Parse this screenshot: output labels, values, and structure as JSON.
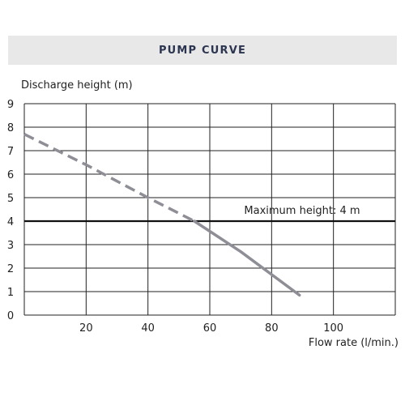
{
  "chart_data": {
    "type": "line",
    "title": "PUMP CURVE",
    "ylabel": "Discharge height (m)",
    "xlabel": "Flow rate (l/min.)",
    "xlim": [
      0,
      120
    ],
    "ylim": [
      0,
      9
    ],
    "x_ticks": [
      20,
      40,
      60,
      80,
      100
    ],
    "y_ticks": [
      0,
      1,
      2,
      3,
      4,
      5,
      6,
      7,
      8,
      9
    ],
    "grid": true,
    "series": [
      {
        "style": "dashed",
        "color": "#8e8e96",
        "points": [
          [
            0,
            7.7
          ],
          [
            20,
            6.4
          ],
          [
            40,
            5.0
          ],
          [
            55,
            4.0
          ]
        ]
      },
      {
        "style": "solid",
        "color": "#8e8e96",
        "points": [
          [
            55,
            4.0
          ],
          [
            70,
            2.7
          ],
          [
            89,
            0.85
          ]
        ]
      }
    ],
    "reference_line": {
      "y": 4,
      "color": "#111111",
      "label": "Maximum height: 4 m"
    }
  }
}
